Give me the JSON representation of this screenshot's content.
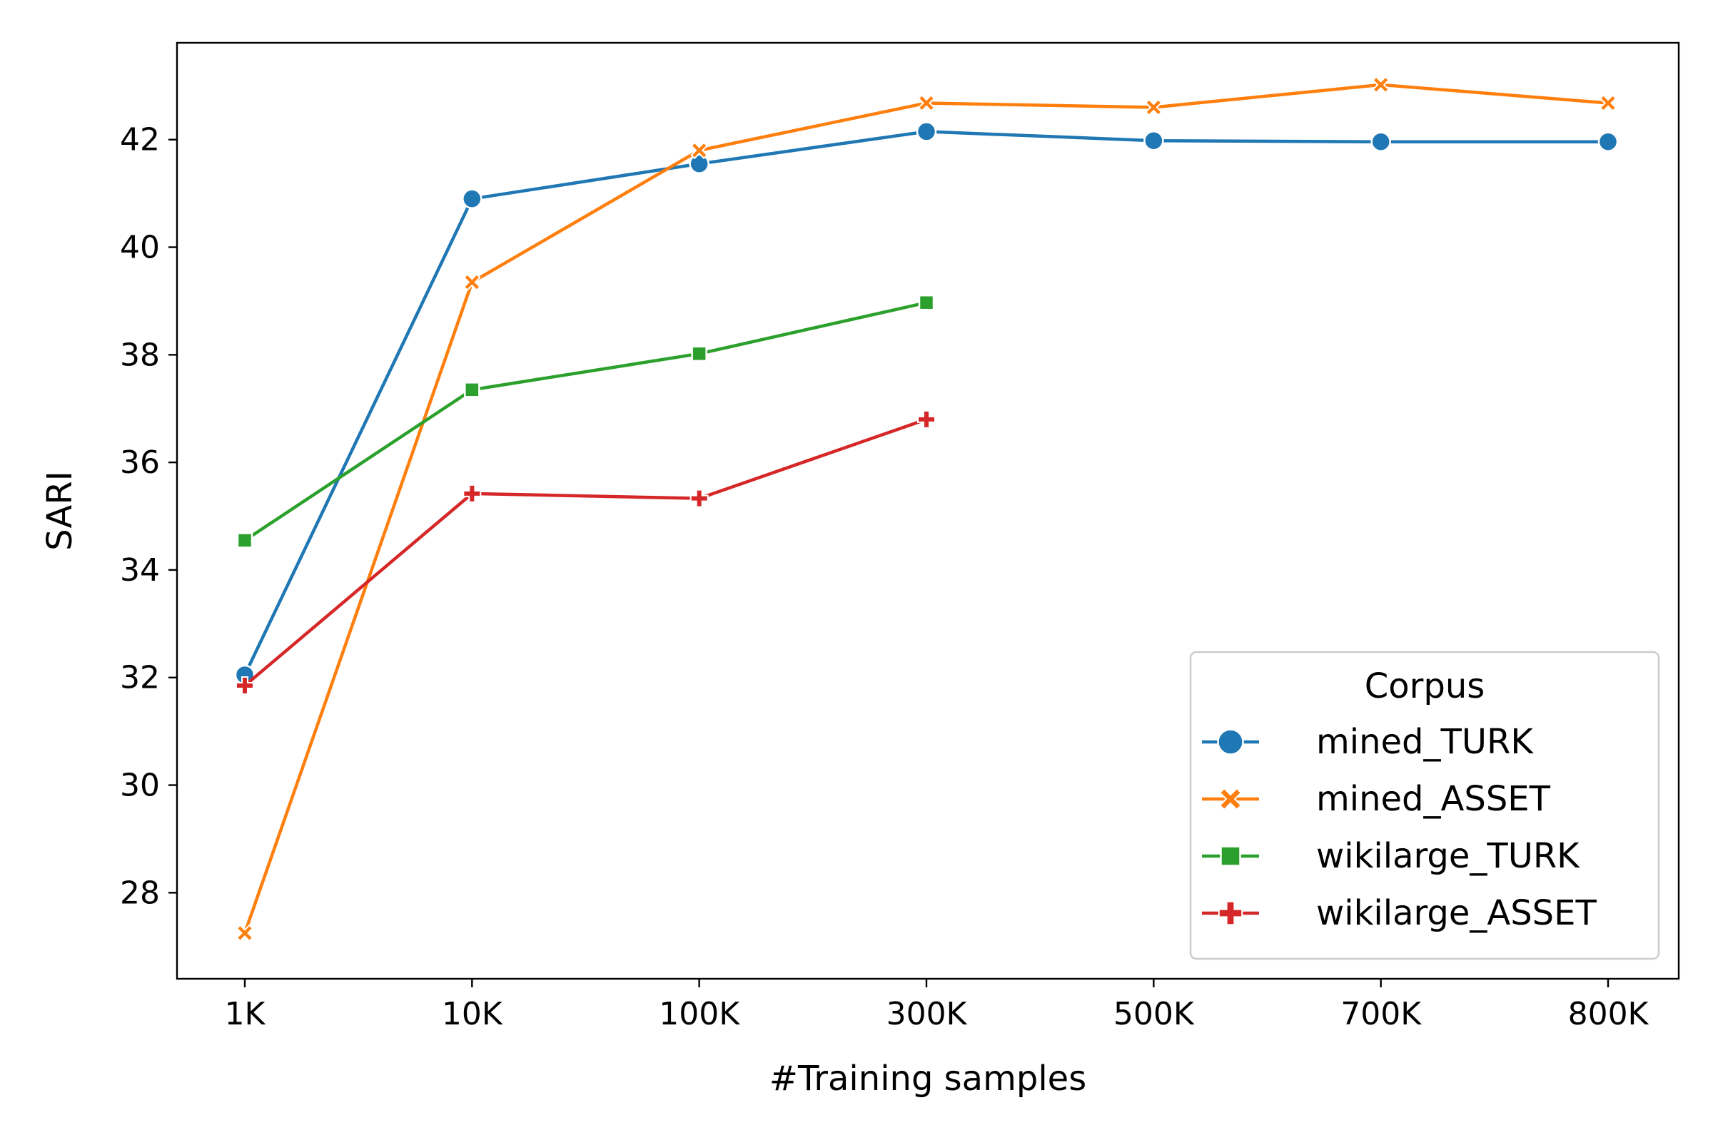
{
  "chart_data": {
    "type": "line",
    "title": "",
    "xlabel": "#Training samples",
    "ylabel": "SARI",
    "categories": [
      "1K",
      "10K",
      "100K",
      "300K",
      "500K",
      "700K",
      "800K"
    ],
    "ylim": [
      26.4,
      43.8
    ],
    "yticks": [
      28,
      30,
      32,
      34,
      36,
      38,
      40,
      42
    ],
    "grid": false,
    "legend": {
      "title": "Corpus",
      "placement": "lower-right"
    },
    "series": [
      {
        "name": "mined_TURK",
        "color": "#1f77b4",
        "marker": "circle",
        "values": [
          32.05,
          40.9,
          41.55,
          42.15,
          41.98,
          41.96,
          41.96
        ]
      },
      {
        "name": "mined_ASSET",
        "color": "#ff7f0e",
        "marker": "x",
        "values": [
          27.25,
          39.35,
          41.8,
          42.68,
          42.6,
          43.02,
          42.68
        ]
      },
      {
        "name": "wikilarge_TURK",
        "color": "#2ca02c",
        "marker": "square",
        "values": [
          34.55,
          37.35,
          38.02,
          38.97,
          null,
          null,
          null
        ]
      },
      {
        "name": "wikilarge_ASSET",
        "color": "#d62728",
        "marker": "plus",
        "values": [
          31.85,
          35.42,
          35.33,
          36.8,
          null,
          null,
          null
        ]
      }
    ]
  }
}
